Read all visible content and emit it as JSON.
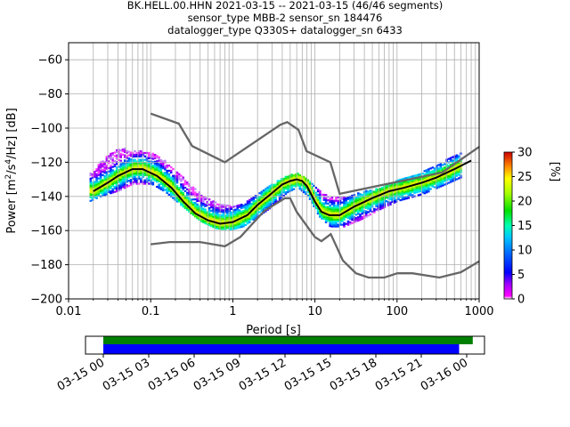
{
  "title_lines": [
    "BK.HELL.00.HHN   2021-03-15 -- 2021-03-15  (46/46 segments)",
    "sensor_type MBB-2 sensor_sn 184476",
    "datalogger_type Q330S+ datalogger_sn 6433"
  ],
  "chart_data": [
    {
      "type": "heatmap",
      "title": "BK.HELL.00.HHN   2021-03-15 -- 2021-03-15  (46/46 segments)",
      "xlabel": "Period [s]",
      "ylabel": "Power [m²/s⁴/Hz] [dB]",
      "xscale": "log",
      "xlim": [
        0.01,
        1000
      ],
      "ylim": [
        -200,
        -50
      ],
      "xticks": [
        0.01,
        0.1,
        1,
        10,
        100,
        1000
      ],
      "xtick_labels": [
        "0.01",
        "0.1",
        "1",
        "10",
        "100",
        "1000"
      ],
      "yticks": [
        -200,
        -180,
        -160,
        -140,
        -120,
        -100,
        -80,
        -60
      ],
      "ytick_labels": [
        "−200",
        "−180",
        "−160",
        "−140",
        "−120",
        "−100",
        "−80",
        "−60"
      ],
      "grid": true,
      "colorbar": {
        "label": "[%]",
        "range": [
          0,
          30
        ],
        "ticks": [
          "0",
          "5",
          "10",
          "15",
          "20",
          "25",
          "30"
        ]
      },
      "mode_curve": {
        "name": "mode",
        "period": [
          0.02,
          0.03,
          0.04,
          0.06,
          0.08,
          0.12,
          0.18,
          0.25,
          0.35,
          0.5,
          0.7,
          1.0,
          1.5,
          2.0,
          3.0,
          4.0,
          5.0,
          6.0,
          7.0,
          8.0,
          10,
          12,
          15,
          20,
          30,
          50,
          80,
          120,
          200,
          300,
          500,
          800
        ],
        "db": [
          -137,
          -132,
          -128,
          -124,
          -124,
          -128,
          -135,
          -143,
          -150,
          -154,
          -156,
          -155,
          -151,
          -145,
          -138,
          -133,
          -131,
          -130,
          -131,
          -134,
          -143,
          -149,
          -151,
          -151,
          -146,
          -141,
          -137,
          -135,
          -132,
          -129,
          -124,
          -119
        ]
      },
      "nhnm": {
        "name": "NHNM",
        "period": [
          0.1,
          0.22,
          0.32,
          0.8,
          3.8,
          4.6,
          6.3,
          7.9,
          15.4,
          20,
          354.8,
          1000
        ],
        "db": [
          -91.5,
          -97.4,
          -110.5,
          -120,
          -98,
          -96.5,
          -101,
          -113.5,
          -120,
          -138.5,
          -126,
          -111
        ]
      },
      "nlnm": {
        "name": "NLNM",
        "period": [
          0.1,
          0.17,
          0.4,
          0.8,
          1.24,
          2.4,
          4.3,
          5,
          6,
          10,
          12,
          15.6,
          21.9,
          31.6,
          45,
          70,
          101,
          154,
          328,
          600,
          1000
        ],
        "db": [
          -168,
          -166.7,
          -166.7,
          -169.2,
          -163.7,
          -148.6,
          -141.1,
          -141.1,
          -149,
          -163.8,
          -166.2,
          -162.1,
          -177.5,
          -185,
          -187.5,
          -187.5,
          -185,
          -185,
          -187.5,
          -184.4,
          -178
        ]
      },
      "psd_envelope": {
        "period": [
          0.018,
          0.025,
          0.04,
          0.06,
          0.1,
          0.15,
          0.25,
          0.4,
          0.6,
          0.9,
          1.3,
          2.0,
          3.0,
          4.5,
          6.0,
          8.0,
          11,
          15,
          22,
          35,
          60,
          100,
          200,
          350,
          600
        ],
        "upper_db": [
          -127,
          -119,
          -112,
          -113,
          -115,
          -120,
          -130,
          -139,
          -144,
          -146,
          -145,
          -139,
          -133,
          -128,
          -127,
          -130,
          -137,
          -141,
          -141,
          -138,
          -135,
          -131,
          -126,
          -120,
          -114
        ],
        "lower_db": [
          -143,
          -140,
          -137,
          -133,
          -133,
          -138,
          -147,
          -155,
          -159,
          -160,
          -158,
          -152,
          -146,
          -138,
          -135,
          -140,
          -152,
          -158,
          -158,
          -154,
          -148,
          -143,
          -139,
          -134,
          -129
        ]
      }
    },
    {
      "type": "timeline",
      "xtick_labels": [
        "03-15 00",
        "03-15 03",
        "03-15 06",
        "03-15 09",
        "03-15 12",
        "03-15 15",
        "03-15 18",
        "03-15 21",
        "03-16 00"
      ],
      "bars": [
        {
          "name": "green",
          "color": "#008000",
          "start_hours": 0,
          "end_hours": 24.4
        },
        {
          "name": "blue",
          "color": "#0000ff",
          "start_hours": 0,
          "end_hours": 23.5
        }
      ]
    }
  ],
  "colors": {
    "mode": "#000000",
    "noise_models": "#666666",
    "grid": "#b0b0b0",
    "timeline_green": "#008000",
    "timeline_blue": "#0000ff"
  }
}
